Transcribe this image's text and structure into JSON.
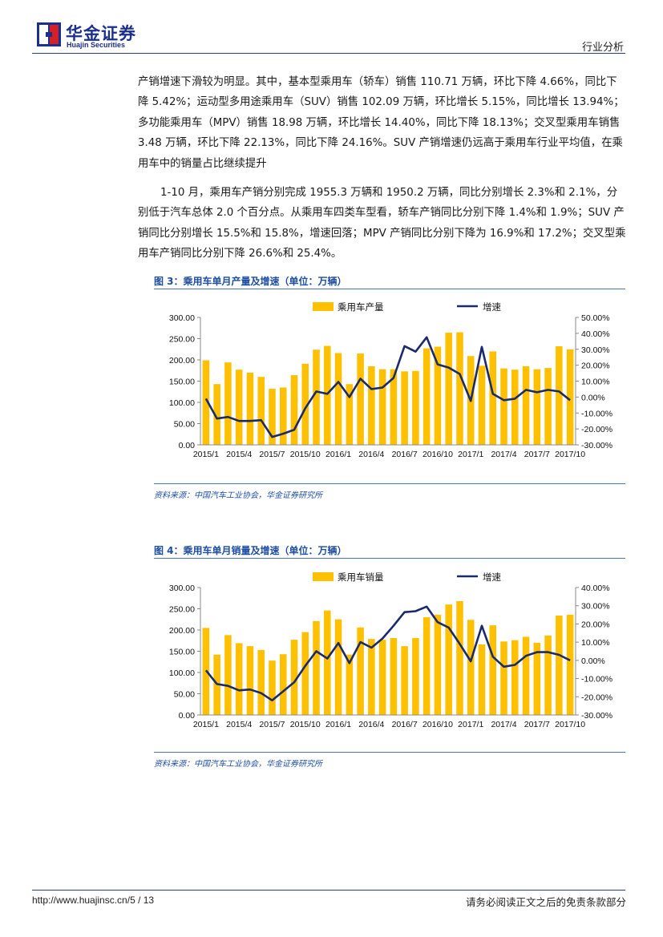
{
  "header": {
    "logo_cn": "华金证券",
    "logo_en": "Huajin Securities",
    "section": "行业分析",
    "brand_color": "#1b2f8f",
    "logo_red": "#d71f26"
  },
  "paragraphs": [
    "产销增速下滑较为明显。其中，基本型乘用车（轿车）销售 110.71 万辆，环比下降 4.66%，同比下降 5.42%；运动型多用途乘用车（SUV）销售 102.09 万辆，环比增长 5.15%，同比增长 13.94%；多功能乘用车（MPV）销售 18.98 万辆，环比增长 14.40%，同比下降 18.13%；交叉型乘用车销售 3.48 万辆，环比下降 22.13%，同比下降 24.16%。SUV 产销增速仍远高于乘用车行业平均值，在乘用车中的销量占比继续提升",
    "1-10 月，乘用车产销分别完成 1955.3 万辆和 1950.2 万辆，同比分别增长 2.3%和 2.1%，分别低于汽车总体 2.0 个百分点。从乘用车四类车型看，轿车产销同比分别下降 1.4%和 1.9%；SUV 产销同比分别增长 15.5%和 15.8%，增速回落；MPV 产销同比分别下降为 16.9%和 17.2%；交叉型乘用车产销同比分别下降 26.6%和 25.4%。"
  ],
  "figures": [
    {
      "title": "图 3：乘用车单月产量及增速（单位：万辆）",
      "source": "资料来源：中国汽车工业协会，华金证券研究所"
    },
    {
      "title": "图 4：乘用车单月销量及增速（单位：万辆）",
      "source": "资料来源：中国汽车工业协会，华金证券研究所"
    }
  ],
  "chart_data": [
    {
      "type": "bar",
      "title": "图 3：乘用车单月产量及增速（单位：万辆）",
      "tick_labels": [
        "2015/1",
        "2015/4",
        "2015/7",
        "2015/10",
        "2016/1",
        "2016/4",
        "2016/7",
        "2016/10",
        "2017/1",
        "2017/4",
        "2017/7",
        "2017/10"
      ],
      "x": [
        "2015/1",
        "2015/2",
        "2015/3",
        "2015/4",
        "2015/5",
        "2015/6",
        "2015/7",
        "2015/8",
        "2015/9",
        "2015/10",
        "2015/11",
        "2015/12",
        "2016/1",
        "2016/2",
        "2016/3",
        "2016/4",
        "2016/5",
        "2016/6",
        "2016/7",
        "2016/8",
        "2016/9",
        "2016/10",
        "2016/11",
        "2016/12",
        "2017/1",
        "2017/2",
        "2017/3",
        "2017/4",
        "2017/5",
        "2017/6",
        "2017/7",
        "2017/8",
        "2017/9",
        "2017/10"
      ],
      "series": [
        {
          "name": "乘用车产量",
          "axis": "left",
          "kind": "bar",
          "color": "#ffc000",
          "values": [
            199,
            143,
            194,
            177,
            170,
            160,
            132,
            135,
            164,
            191,
            224,
            233,
            216,
            143,
            215,
            185,
            178,
            178,
            173,
            174,
            227,
            231,
            264,
            265,
            209,
            186,
            220,
            180,
            177,
            185,
            178,
            181,
            232,
            225
          ]
        },
        {
          "name": "增速",
          "axis": "right",
          "kind": "line",
          "color": "#1a2a6c",
          "values": [
            -1,
            -13.5,
            -12.5,
            -15,
            -15,
            -14.5,
            -25,
            -23,
            -20.5,
            -7,
            3.5,
            2,
            9.5,
            0,
            11.5,
            5,
            6,
            12,
            32,
            28.5,
            37.5,
            20.5,
            18.5,
            14.5,
            -2.5,
            31.5,
            2,
            -2,
            -1,
            4.5,
            3,
            4.5,
            3.5,
            -2
          ]
        }
      ],
      "ylim_left": [
        0,
        300
      ],
      "ylim_right": [
        -30,
        50
      ],
      "left_ticks": [
        "0.00",
        "50.00",
        "100.00",
        "150.00",
        "200.00",
        "250.00",
        "300.00"
      ],
      "right_ticks": [
        "-30.00%",
        "-20.00%",
        "-10.00%",
        "0.00%",
        "10.00%",
        "20.00%",
        "30.00%",
        "40.00%",
        "50.00%"
      ],
      "legend": "top-center",
      "grid": false
    },
    {
      "type": "bar",
      "title": "图 4：乘用车单月销量及增速（单位：万辆）",
      "tick_labels": [
        "2015/1",
        "2015/4",
        "2015/7",
        "2015/10",
        "2016/1",
        "2016/4",
        "2016/7",
        "2016/10",
        "2017/1",
        "2017/4",
        "2017/7",
        "2017/10"
      ],
      "x": [
        "2015/1",
        "2015/2",
        "2015/3",
        "2015/4",
        "2015/5",
        "2015/6",
        "2015/7",
        "2015/8",
        "2015/9",
        "2015/10",
        "2015/11",
        "2015/12",
        "2016/1",
        "2016/2",
        "2016/3",
        "2016/4",
        "2016/5",
        "2016/6",
        "2016/7",
        "2016/8",
        "2016/9",
        "2016/10",
        "2016/11",
        "2016/12",
        "2017/1",
        "2017/2",
        "2017/3",
        "2017/4",
        "2017/5",
        "2017/6",
        "2017/7",
        "2017/8",
        "2017/9",
        "2017/10"
      ],
      "series": [
        {
          "name": "乘用车销量",
          "axis": "left",
          "kind": "bar",
          "color": "#ffc000",
          "values": [
            205,
            142,
            188,
            169,
            162,
            153,
            128,
            143,
            177,
            195,
            221,
            246,
            225,
            142,
            206,
            179,
            177,
            181,
            162,
            181,
            230,
            236,
            260,
            268,
            224,
            166,
            211,
            173,
            176,
            184,
            170,
            187,
            234,
            236
          ]
        },
        {
          "name": "增速",
          "axis": "right",
          "kind": "line",
          "color": "#1a2a6c",
          "values": [
            -5.5,
            -13,
            -14,
            -16.5,
            -16,
            -18,
            -22,
            -17,
            -12,
            -3,
            5,
            1,
            9.5,
            -1.5,
            10,
            7,
            12,
            19,
            26.5,
            27,
            29.5,
            21,
            18,
            9,
            -0.5,
            19,
            2,
            -3.5,
            -2.5,
            2.5,
            4.5,
            4.5,
            3,
            0
          ]
        }
      ],
      "ylim_left": [
        0,
        300
      ],
      "ylim_right": [
        -30,
        40
      ],
      "left_ticks": [
        "0.00",
        "50.00",
        "100.00",
        "150.00",
        "200.00",
        "250.00",
        "300.00"
      ],
      "right_ticks": [
        "-30.00%",
        "-20.00%",
        "-10.00%",
        "0.00%",
        "10.00%",
        "20.00%",
        "30.00%",
        "40.00%"
      ],
      "legend": "top-center",
      "grid": false
    }
  ],
  "footer": {
    "url": "http://www.huajinsc.cn/",
    "page": "5 / 13",
    "disclaimer": "请务必阅读正文之后的免责条款部分"
  }
}
